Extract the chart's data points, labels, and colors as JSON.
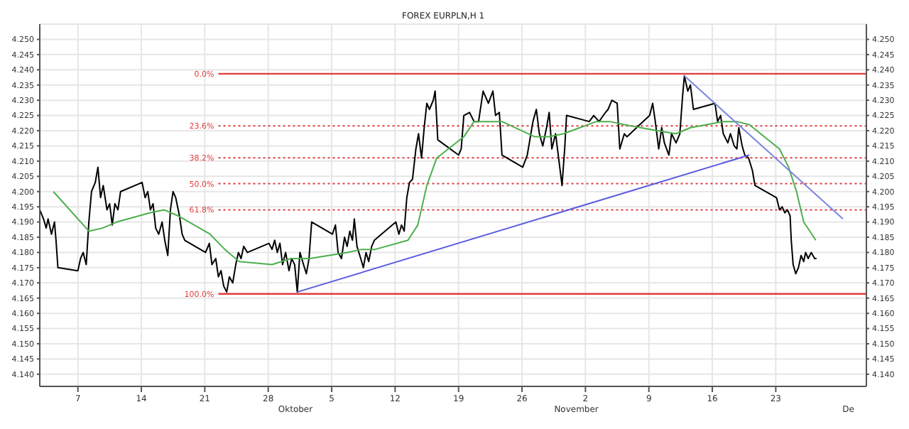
{
  "chart_data": {
    "type": "line",
    "title": "FOREX EURPLN,H 1",
    "xlim": [
      "--09-02T19:00",
      "--12-03T00:00"
    ],
    "xticks": [
      {
        "value": "--09-07",
        "label": "7"
      },
      {
        "value": "--09-14",
        "label": "14"
      },
      {
        "value": "--09-21",
        "label": "21"
      },
      {
        "value": "--09-28",
        "label": "28"
      },
      {
        "value": "--10-05",
        "label": "5"
      },
      {
        "value": "--10-12",
        "label": "12"
      },
      {
        "value": "--10-19",
        "label": "19"
      },
      {
        "value": "--10-26",
        "label": "26"
      },
      {
        "value": "--11-02",
        "label": "2"
      },
      {
        "value": "--11-09",
        "label": "9"
      },
      {
        "value": "--11-16",
        "label": "16"
      },
      {
        "value": "--11-23",
        "label": "23"
      }
    ],
    "ylim": [
      4.136,
      4.255
    ],
    "yticks": [
      {
        "value": 4.14,
        "label": "4.140"
      },
      4.145,
      {
        "value": 4.15,
        "label": "4.150"
      },
      4.155,
      {
        "value": 4.16,
        "label": "4.160"
      },
      4.165,
      {
        "value": 4.17,
        "label": "4.170"
      },
      4.175,
      {
        "value": 4.18,
        "label": "4.180"
      },
      4.185,
      {
        "value": 4.19,
        "label": "4.190"
      },
      4.195,
      {
        "value": 4.2,
        "label": "4.200"
      },
      4.205,
      {
        "value": 4.21,
        "label": "4.210"
      },
      4.215,
      {
        "value": 4.22,
        "label": "4.220"
      },
      4.225,
      {
        "value": 4.23,
        "label": "4.230"
      },
      4.235,
      {
        "value": 4.24,
        "label": "4.240"
      },
      4.245,
      {
        "value": 4.25,
        "label": "4.250"
      }
    ],
    "y2lim": [
      4.136,
      4.255
    ],
    "y2ticks": [
      {
        "value": 4.14,
        "label": "4.140"
      },
      4.145,
      {
        "value": 4.15,
        "label": "4.150"
      },
      4.155,
      {
        "value": 4.16,
        "label": "4.160"
      },
      4.165,
      {
        "value": 4.17,
        "label": "4.170"
      },
      4.175,
      {
        "value": 4.18,
        "label": "4.180"
      },
      4.185,
      {
        "value": 4.19,
        "label": "4.190"
      },
      4.195,
      {
        "value": 4.2,
        "label": "4.200"
      },
      4.205,
      {
        "value": 4.21,
        "label": "4.210"
      },
      4.215,
      {
        "value": 4.22,
        "label": "4.220"
      },
      4.225,
      {
        "value": 4.23,
        "label": "4.230"
      },
      4.235,
      {
        "value": 4.24,
        "label": "4.240"
      },
      4.245,
      {
        "value": 4.25,
        "label": "4.250"
      }
    ],
    "grid": true,
    "marker": "none",
    "series": [
      {
        "color": "#000000",
        "x": [
          "--09-02T19:00",
          "--09-03T05:00",
          "--09-03T12:00",
          "--09-03T17:00",
          "--09-04T02:00",
          "--09-04T10:00",
          "--09-04T14:00",
          "--09-04T19:00",
          "--09-07T00:00",
          "--09-07T07:00",
          "--09-07T14:00",
          "--09-07T22:00",
          "--09-08T05:00",
          "--09-08T12:00",
          "--09-08T22:00",
          "--09-09T05:00",
          "--09-09T12:00",
          "--09-09T19:00",
          "--09-10T05:00",
          "--09-10T12:00",
          "--09-10T19:00",
          "--09-11T02:00",
          "--09-11T10:00",
          "--09-11T17:00",
          "--09-14T02:00",
          "--09-14T10:00",
          "--09-14T17:00",
          "--09-15T00:00",
          "--09-15T07:00",
          "--09-15T14:00",
          "--09-15T22:00",
          "--09-16T07:00",
          "--09-16T14:00",
          "--09-16T22:00",
          "--09-17T05:00",
          "--09-17T12:00",
          "--09-17T19:00",
          "--09-18T05:00",
          "--09-18T12:00",
          "--09-18T19:00",
          "--09-21T02:00",
          "--09-21T12:00",
          "--09-21T19:00",
          "--09-22T05:00",
          "--09-22T12:00",
          "--09-22T19:00",
          "--09-23T02:00",
          "--09-23T10:00",
          "--09-23T17:00",
          "--09-24T02:00",
          "--09-24T10:00",
          "--09-24T17:00",
          "--09-25T00:00",
          "--09-25T07:00",
          "--09-25T17:00",
          "--09-28T02:00",
          "--09-28T10:00",
          "--09-28T17:00",
          "--09-29T00:00",
          "--09-29T07:00",
          "--09-29T14:00",
          "--09-29T22:00",
          "--09-30T07:00",
          "--09-30T14:00",
          "--09-30T22:00",
          "--10-01T05:00",
          "--10-01T12:00",
          "--10-01T19:00",
          "--10-02T05:00",
          "--10-02T12:00",
          "--10-02T19:00",
          "--10-05T02:00",
          "--10-05T10:00",
          "--10-05T17:00",
          "--10-06T02:00",
          "--10-06T10:00",
          "--10-06T17:00",
          "--10-07T00:00",
          "--10-07T07:00",
          "--10-07T12:00",
          "--10-07T19:00",
          "--10-08T05:00",
          "--10-08T12:00",
          "--10-08T19:00",
          "--10-09T02:00",
          "--10-09T10:00",
          "--10-09T17:00",
          "--10-12T02:00",
          "--10-12T10:00",
          "--10-12T17:00",
          "--10-13T00:00",
          "--10-13T07:00",
          "--10-13T14:00",
          "--10-13T22:00",
          "--10-14T07:00",
          "--10-14T14:00",
          "--10-14T22:00",
          "--10-15T05:00",
          "--10-15T12:00",
          "--10-15T19:00",
          "--10-16T05:00",
          "--10-16T10:00",
          "--10-16T17:00",
          "--10-19T00:00",
          "--10-19T07:00",
          "--10-19T14:00",
          "--10-20T05:00",
          "--10-20T17:00",
          "--10-21T05:00",
          "--10-21T17:00",
          "--10-22T07:00",
          "--10-22T19:00",
          "--10-23T02:00",
          "--10-23T12:00",
          "--10-23T19:00",
          "--10-26T02:00",
          "--10-26T14:00",
          "--10-27T05:00",
          "--10-27T14:00",
          "--10-27T22:00",
          "--10-28T07:00",
          "--10-28T17:00",
          "--10-29T00:00",
          "--10-29T07:00",
          "--10-29T17:00",
          "--10-30T02:00",
          "--10-30T10:00",
          "--10-30T17:00",
          "--10-30T22:00",
          "--11-02T10:00",
          "--11-02T22:00",
          "--11-03T12:00",
          "--11-04T05:00",
          "--11-04T12:00",
          "--11-04T22:00",
          "--11-05T12:00",
          "--11-05T19:00",
          "--11-06T07:00",
          "--11-06T14:00",
          "--11-09T02:00",
          "--11-09T10:00",
          "--11-09T17:00",
          "--11-10T02:00",
          "--11-10T10:00",
          "--11-10T17:00",
          "--11-11T05:00",
          "--11-11T12:00",
          "--11-12T00:00",
          "--11-12T10:00",
          "--11-12T17:00",
          "--11-12T22:00",
          "--11-13T07:00",
          "--11-13T14:00",
          "--11-13T22:00",
          "--11-16T07:00",
          "--11-16T14:00",
          "--11-16T22:00",
          "--11-17T05:00",
          "--11-17T17:00",
          "--11-18T00:00",
          "--11-18T10:00",
          "--11-18T17:00",
          "--11-18T22:00",
          "--11-19T07:00",
          "--11-19T14:00",
          "--11-20T00:00",
          "--11-20T10:00",
          "--11-20T17:00",
          "--11-23T02:00",
          "--11-23T10:00",
          "--11-23T17:00",
          "--11-24T00:00",
          "--11-24T07:00",
          "--11-24T14:00",
          "--11-24T17:00",
          "--11-24T22:00",
          "--11-25T05:00",
          "--11-25T12:00",
          "--11-25T19:00",
          "--11-26T02:00",
          "--11-26T07:00",
          "--11-26T14:00",
          "--11-26T22:00",
          "--11-27T07:00",
          "--11-27T12:00"
        ],
        "values": [
          4.194,
          4.191,
          4.188,
          4.191,
          4.186,
          4.19,
          4.184,
          4.175,
          4.174,
          4.178,
          4.18,
          4.176,
          4.19,
          4.2,
          4.203,
          4.208,
          4.198,
          4.202,
          4.194,
          4.196,
          4.189,
          4.196,
          4.194,
          4.2,
          4.203,
          4.198,
          4.2,
          4.194,
          4.196,
          4.188,
          4.186,
          4.19,
          4.184,
          4.179,
          4.194,
          4.2,
          4.198,
          4.192,
          4.186,
          4.184,
          4.18,
          4.183,
          4.176,
          4.178,
          4.172,
          4.174,
          4.169,
          4.167,
          4.172,
          4.17,
          4.176,
          4.18,
          4.178,
          4.182,
          4.18,
          4.183,
          4.181,
          4.184,
          4.18,
          4.183,
          4.176,
          4.18,
          4.174,
          4.178,
          4.176,
          4.167,
          4.18,
          4.177,
          4.173,
          4.178,
          4.19,
          4.186,
          4.189,
          4.18,
          4.178,
          4.185,
          4.182,
          4.187,
          4.184,
          4.191,
          4.182,
          4.178,
          4.175,
          4.18,
          4.177,
          4.182,
          4.184,
          4.19,
          4.186,
          4.189,
          4.187,
          4.198,
          4.203,
          4.204,
          4.214,
          4.219,
          4.211,
          4.221,
          4.229,
          4.227,
          4.23,
          4.233,
          4.217,
          4.212,
          4.214,
          4.225,
          4.226,
          4.223,
          4.223,
          4.233,
          4.229,
          4.233,
          4.225,
          4.226,
          4.212,
          4.208,
          4.212,
          4.223,
          4.227,
          4.219,
          4.215,
          4.221,
          4.226,
          4.214,
          4.219,
          4.21,
          4.202,
          4.214,
          4.225,
          4.223,
          4.225,
          4.223,
          4.226,
          4.227,
          4.23,
          4.229,
          4.214,
          4.219,
          4.218,
          4.225,
          4.229,
          4.223,
          4.214,
          4.221,
          4.216,
          4.212,
          4.219,
          4.216,
          4.219,
          4.231,
          4.238,
          4.233,
          4.235,
          4.227,
          4.229,
          4.223,
          4.225,
          4.219,
          4.216,
          4.219,
          4.215,
          4.214,
          4.221,
          4.215,
          4.212,
          4.211,
          4.207,
          4.202,
          4.198,
          4.194,
          4.195,
          4.193,
          4.194,
          4.192,
          4.184,
          4.176,
          4.173,
          4.175,
          4.179,
          4.177,
          4.18,
          4.178,
          4.18,
          4.178,
          4.178
        ]
      },
      {
        "color": "#4caf4c",
        "x": [
          "--09-04T07:00",
          "--09-08T05:00",
          "--09-09T17:00",
          "--09-11T07:00",
          "--09-14T22:00",
          "--09-16T12:00",
          "--09-18T02:00",
          "--09-21T14:00",
          "--09-23T05:00",
          "--09-24T19:00",
          "--09-28T10:00",
          "--09-30T12:00",
          "--10-02T14:00",
          "--10-06T17:00",
          "--10-08T07:00",
          "--10-09T19:00",
          "--10-13T10:00",
          "--10-14T12:00",
          "--10-15T12:00",
          "--10-16T14:00",
          "--10-19T14:00",
          "--10-20T17:00",
          "--10-22T07:00",
          "--10-23T19:00",
          "--10-27T10:00",
          "--10-29T00:00",
          "--10-30T14:00",
          "--11-03T05:00",
          "--11-04T17:00",
          "--11-06T07:00",
          "--11-09T22:00",
          "--11-12T00:00",
          "--11-13T14:00",
          "--11-17T05:00",
          "--11-18T17:00",
          "--11-20T02:00",
          "--11-23T10:00",
          "--11-24T10:00",
          "--11-25T07:00",
          "--11-26T02:00",
          "--11-27T10:00"
        ],
        "values": [
          4.2,
          4.187,
          4.188,
          4.19,
          4.193,
          4.194,
          4.192,
          4.186,
          4.181,
          4.177,
          4.176,
          4.178,
          4.178,
          4.18,
          4.181,
          4.181,
          4.184,
          4.189,
          4.202,
          4.211,
          4.218,
          4.223,
          4.223,
          4.223,
          4.218,
          4.218,
          4.219,
          4.223,
          4.223,
          4.222,
          4.22,
          4.219,
          4.221,
          4.223,
          4.223,
          4.222,
          4.214,
          4.208,
          4.2,
          4.19,
          4.184
        ]
      },
      {
        "color": "#5a5ae0",
        "x": [
          "--10-01T05:00",
          "--11-20T02:00"
        ],
        "values": [
          4.167,
          4.212
        ]
      },
      {
        "color": "#7a86e0",
        "x": [
          "--11-12T22:00",
          "--11-30T10:00"
        ],
        "values": [
          4.238,
          4.191
        ]
      }
    ],
    "ref_lines": [
      {
        "axis": "y",
        "value": 4.2387,
        "color": "#e03c3c",
        "line_style": "solid"
      },
      {
        "axis": "y",
        "value": 4.2216,
        "color": "#e03c3c",
        "line_style": "dotted"
      },
      {
        "axis": "y",
        "value": 4.2111,
        "color": "#e03c3c",
        "line_style": "dotted"
      },
      {
        "axis": "y",
        "value": 4.2026,
        "color": "#e03c3c",
        "line_style": "dotted"
      },
      {
        "axis": "y",
        "value": 4.194,
        "color": "#e03c3c",
        "line_style": "dotted"
      },
      {
        "axis": "y",
        "value": 4.1664,
        "color": "#e03c3c",
        "line_style": "solid"
      }
    ],
    "annotations": [
      "Oktober",
      "November",
      "De",
      {
        "text": "0.0%",
        "x": "--09-22T12:00",
        "y": 4.2387
      },
      {
        "text": "23.6%",
        "x": "--09-22T12:00",
        "y": 4.2216
      },
      {
        "text": "38.2%",
        "x": "--09-22T12:00",
        "y": 4.2111
      },
      {
        "text": "50.0%",
        "x": "--09-22T12:00",
        "y": 4.2026
      },
      {
        "text": "61.8%",
        "x": "--09-22T12:00",
        "y": 4.194
      },
      {
        "text": "100.0%",
        "x": "--09-22T12:00",
        "y": 4.1664
      }
    ]
  }
}
